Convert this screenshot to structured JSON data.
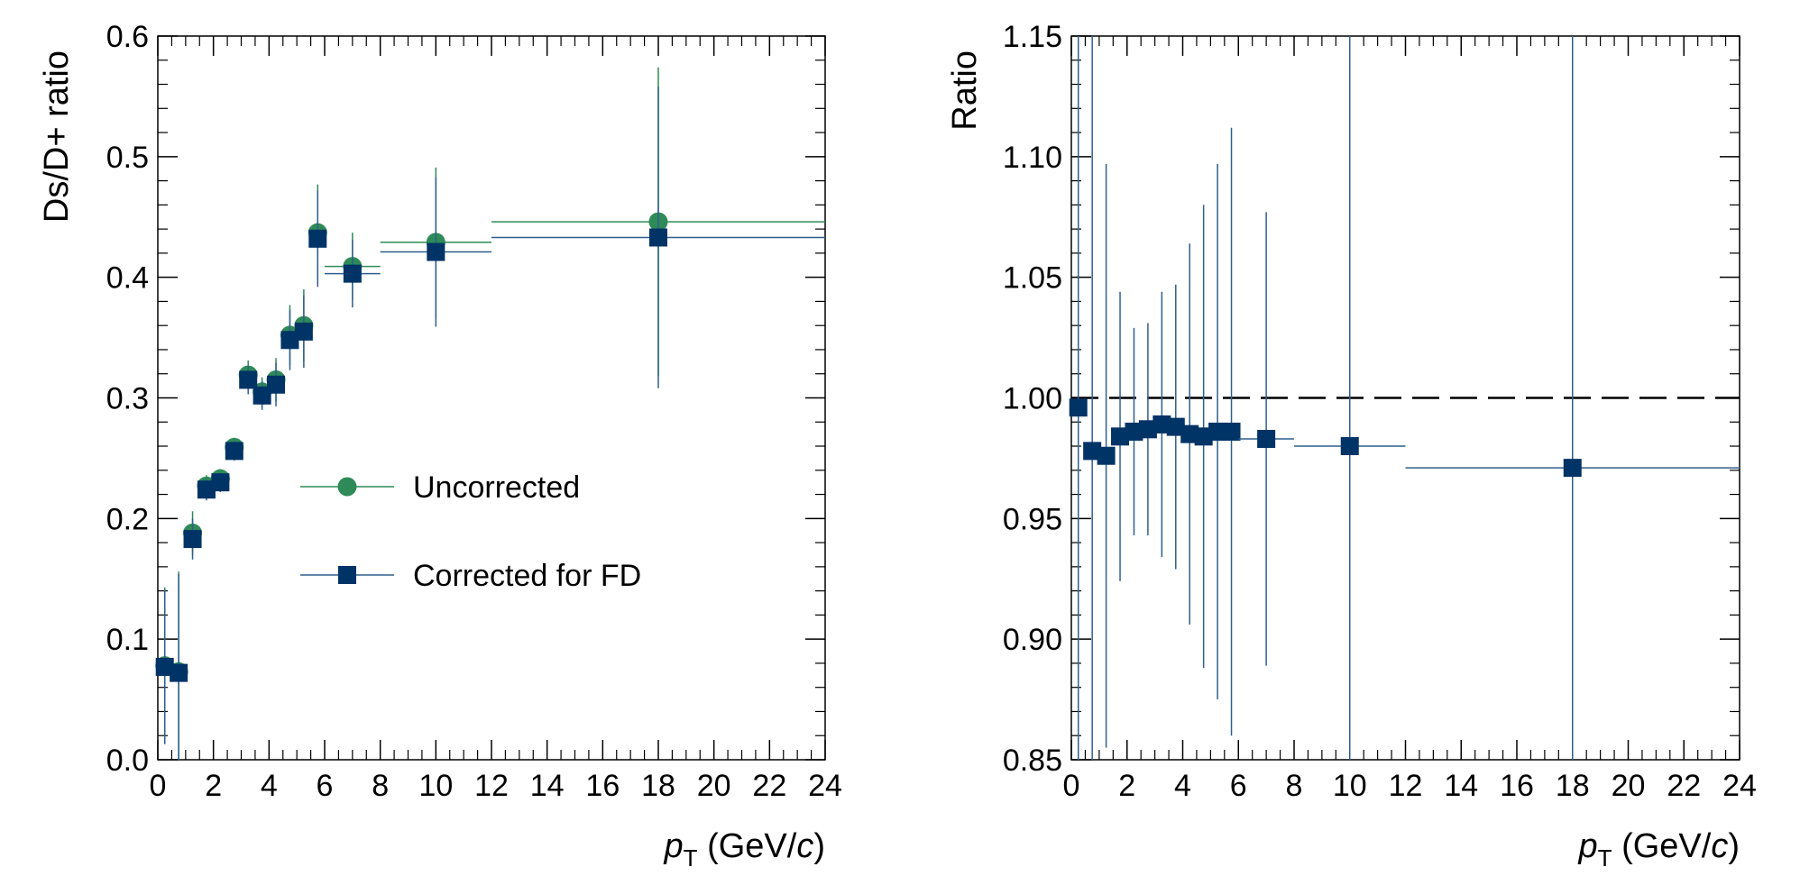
{
  "colors": {
    "uncorrected": "#2e8b57",
    "corrected": "#003366",
    "error_line": "#2f5f8f",
    "reference": "#000000"
  },
  "chart_data": [
    {
      "type": "scatter",
      "panel": "left",
      "ylabel": "Ds/D+ ratio",
      "xlabel_main": "p",
      "xlabel_sub": "T",
      "xlabel_unit_open": " (GeV/",
      "xlabel_unit_var": "c",
      "xlabel_unit_close": ")",
      "xlim": [
        0,
        24
      ],
      "ylim": [
        0,
        0.6
      ],
      "xticks": [
        "0",
        "2",
        "4",
        "6",
        "8",
        "10",
        "12",
        "14",
        "16",
        "18",
        "20",
        "22",
        "24"
      ],
      "yticks": [
        "0.0",
        "0.1",
        "0.2",
        "0.3",
        "0.4",
        "0.5",
        "0.6"
      ],
      "ytick_values": [
        0,
        0.1,
        0.2,
        0.3,
        0.4,
        0.5,
        0.6
      ],
      "legend": {
        "placement": "center-left",
        "entries": [
          "Uncorrected",
          "Corrected for FD"
        ]
      },
      "series": [
        {
          "name": "Uncorrected",
          "marker": "circle",
          "points": [
            {
              "x": 0.25,
              "xerr": 0.25,
              "y": 0.078,
              "yerr": 0.065
            },
            {
              "x": 0.75,
              "xerr": 0.25,
              "y": 0.073,
              "yerr": 0.083
            },
            {
              "x": 1.25,
              "xerr": 0.25,
              "y": 0.188,
              "yerr": 0.018
            },
            {
              "x": 1.75,
              "xerr": 0.25,
              "y": 0.227,
              "yerr": 0.009
            },
            {
              "x": 2.25,
              "xerr": 0.25,
              "y": 0.233,
              "yerr": 0.008
            },
            {
              "x": 2.75,
              "xerr": 0.25,
              "y": 0.259,
              "yerr": 0.008
            },
            {
              "x": 3.25,
              "xerr": 0.25,
              "y": 0.319,
              "yerr": 0.012
            },
            {
              "x": 3.75,
              "xerr": 0.25,
              "y": 0.305,
              "yerr": 0.012
            },
            {
              "x": 4.25,
              "xerr": 0.25,
              "y": 0.315,
              "yerr": 0.018
            },
            {
              "x": 4.75,
              "xerr": 0.25,
              "y": 0.352,
              "yerr": 0.025
            },
            {
              "x": 5.25,
              "xerr": 0.25,
              "y": 0.36,
              "yerr": 0.03
            },
            {
              "x": 5.75,
              "xerr": 0.25,
              "y": 0.437,
              "yerr": 0.04
            },
            {
              "x": 7.0,
              "xerr": 1.0,
              "y": 0.409,
              "yerr": 0.028
            },
            {
              "x": 10.0,
              "xerr": 2.0,
              "y": 0.429,
              "yerr": 0.062
            },
            {
              "x": 18.0,
              "xerr": 6.0,
              "y": 0.446,
              "yerr": 0.128
            }
          ]
        },
        {
          "name": "Corrected for FD",
          "marker": "square",
          "points": [
            {
              "x": 0.25,
              "xerr": 0.25,
              "y": 0.077,
              "yerr": 0.064
            },
            {
              "x": 0.75,
              "xerr": 0.25,
              "y": 0.072,
              "yerr": 0.082
            },
            {
              "x": 1.25,
              "xerr": 0.25,
              "y": 0.183,
              "yerr": 0.017
            },
            {
              "x": 1.75,
              "xerr": 0.25,
              "y": 0.224,
              "yerr": 0.009
            },
            {
              "x": 2.25,
              "xerr": 0.25,
              "y": 0.23,
              "yerr": 0.008
            },
            {
              "x": 2.75,
              "xerr": 0.25,
              "y": 0.256,
              "yerr": 0.008
            },
            {
              "x": 3.25,
              "xerr": 0.25,
              "y": 0.315,
              "yerr": 0.012
            },
            {
              "x": 3.75,
              "xerr": 0.25,
              "y": 0.302,
              "yerr": 0.012
            },
            {
              "x": 4.25,
              "xerr": 0.25,
              "y": 0.311,
              "yerr": 0.018
            },
            {
              "x": 4.75,
              "xerr": 0.25,
              "y": 0.348,
              "yerr": 0.025
            },
            {
              "x": 5.25,
              "xerr": 0.25,
              "y": 0.355,
              "yerr": 0.03
            },
            {
              "x": 5.75,
              "xerr": 0.25,
              "y": 0.432,
              "yerr": 0.04
            },
            {
              "x": 7.0,
              "xerr": 1.0,
              "y": 0.403,
              "yerr": 0.028
            },
            {
              "x": 10.0,
              "xerr": 2.0,
              "y": 0.421,
              "yerr": 0.062
            },
            {
              "x": 18.0,
              "xerr": 6.0,
              "y": 0.433,
              "yerr": 0.125
            }
          ]
        }
      ]
    },
    {
      "type": "scatter",
      "panel": "right",
      "ylabel": "Ratio",
      "xlabel_main": "p",
      "xlabel_sub": "T",
      "xlabel_unit_open": " (GeV/",
      "xlabel_unit_var": "c",
      "xlabel_unit_close": ")",
      "xlim": [
        0,
        24
      ],
      "ylim": [
        0.85,
        1.15
      ],
      "xticks": [
        "0",
        "2",
        "4",
        "6",
        "8",
        "10",
        "12",
        "14",
        "16",
        "18",
        "20",
        "22",
        "24"
      ],
      "yticks": [
        "0.85",
        "0.90",
        "0.95",
        "1.00",
        "1.05",
        "1.10",
        "1.15"
      ],
      "ytick_values": [
        0.85,
        0.9,
        0.95,
        1.0,
        1.05,
        1.1,
        1.15
      ],
      "reference_line": {
        "y": 1.0,
        "style": "dashed"
      },
      "series": [
        {
          "name": "Ratio",
          "marker": "square",
          "points": [
            {
              "x": 0.25,
              "xerr": 0.25,
              "y": 0.996,
              "yerr": 0.3
            },
            {
              "x": 0.75,
              "xerr": 0.25,
              "y": 0.978,
              "yerr": 0.3
            },
            {
              "x": 1.25,
              "xerr": 0.25,
              "y": 0.976,
              "yerr": 0.121
            },
            {
              "x": 1.75,
              "xerr": 0.25,
              "y": 0.984,
              "yerr": 0.06
            },
            {
              "x": 2.25,
              "xerr": 0.25,
              "y": 0.986,
              "yerr": 0.043
            },
            {
              "x": 2.75,
              "xerr": 0.25,
              "y": 0.987,
              "yerr": 0.044
            },
            {
              "x": 3.25,
              "xerr": 0.25,
              "y": 0.989,
              "yerr": 0.055
            },
            {
              "x": 3.75,
              "xerr": 0.25,
              "y": 0.988,
              "yerr": 0.059
            },
            {
              "x": 4.25,
              "xerr": 0.25,
              "y": 0.985,
              "yerr": 0.079
            },
            {
              "x": 4.75,
              "xerr": 0.25,
              "y": 0.984,
              "yerr": 0.096
            },
            {
              "x": 5.25,
              "xerr": 0.25,
              "y": 0.986,
              "yerr": 0.111
            },
            {
              "x": 5.75,
              "xerr": 0.25,
              "y": 0.986,
              "yerr": 0.126
            },
            {
              "x": 7.0,
              "xerr": 1.0,
              "y": 0.983,
              "yerr": 0.094
            },
            {
              "x": 10.0,
              "xerr": 2.0,
              "y": 0.98,
              "yerr": 0.2
            },
            {
              "x": 18.0,
              "xerr": 6.0,
              "y": 0.971,
              "yerr": 0.2
            }
          ]
        }
      ]
    }
  ]
}
